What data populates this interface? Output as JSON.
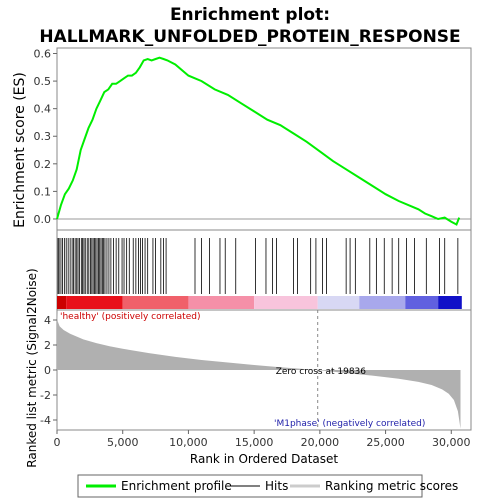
{
  "chart_data": {
    "type": "line",
    "title_line1": "Enrichment plot:",
    "title_line2": "HALLMARK_UNFOLDED_PROTEIN_RESPONSE",
    "es_panel": {
      "ylabel": "Enrichment score (ES)",
      "ylim": [
        -0.04,
        0.62
      ],
      "yticks": [
        "0.0",
        "0.1",
        "0.2",
        "0.3",
        "0.4",
        "0.5",
        "0.6"
      ],
      "ytick_values": [
        0.0,
        0.1,
        0.2,
        0.3,
        0.4,
        0.5,
        0.6
      ],
      "line_color": "#00ee00",
      "series": [
        {
          "x": [
            0,
            300,
            600,
            900,
            1200,
            1500,
            1800,
            2100,
            2400,
            2700,
            3000,
            3300,
            3600,
            3900,
            4200,
            4500,
            4800,
            5100,
            5400,
            5700,
            6000,
            6300,
            6600,
            6900,
            7200,
            7500,
            7800,
            8100,
            8400,
            9000,
            10000,
            11000,
            12000,
            13000,
            14000,
            15000,
            16000,
            17000,
            18000,
            19000,
            20000,
            21000,
            22000,
            23000,
            24000,
            25000,
            26000,
            27000,
            27500,
            28000,
            28500,
            29000,
            29500,
            30000,
            30400,
            30600
          ],
          "y": [
            0.0,
            0.05,
            0.09,
            0.11,
            0.14,
            0.18,
            0.25,
            0.29,
            0.33,
            0.36,
            0.4,
            0.43,
            0.46,
            0.47,
            0.49,
            0.49,
            0.5,
            0.51,
            0.52,
            0.52,
            0.53,
            0.55,
            0.575,
            0.58,
            0.575,
            0.58,
            0.585,
            0.58,
            0.575,
            0.56,
            0.52,
            0.5,
            0.47,
            0.45,
            0.42,
            0.39,
            0.36,
            0.34,
            0.31,
            0.28,
            0.245,
            0.21,
            0.18,
            0.15,
            0.12,
            0.09,
            0.065,
            0.045,
            0.035,
            0.02,
            0.01,
            0.0,
            0.005,
            -0.01,
            -0.02,
            0.005
          ]
        }
      ]
    },
    "hits": [
      80,
      160,
      300,
      420,
      560,
      700,
      850,
      1000,
      1150,
      1250,
      1380,
      1500,
      1600,
      1720,
      1850,
      1950,
      2050,
      2150,
      2300,
      2420,
      2550,
      2650,
      2750,
      2850,
      2950,
      3050,
      3150,
      3250,
      3350,
      3450,
      3550,
      3650,
      3800,
      3950,
      4100,
      4300,
      4500,
      4700,
      4950,
      5100,
      5300,
      5500,
      5800,
      6000,
      6200,
      6350,
      6500,
      6700,
      6900,
      7300,
      7500,
      7900,
      8100,
      8300,
      10500,
      11000,
      11600,
      12400,
      12800,
      13600,
      15100,
      15900,
      16400,
      16700,
      18000,
      18300,
      19300,
      19700,
      20200,
      20500,
      22000,
      22300,
      22700,
      23800,
      24300,
      24900,
      25500,
      26000,
      26600,
      27200,
      28100,
      29100,
      29500,
      30500
    ],
    "rank_bar": {
      "segments": [
        {
          "from": 0,
          "to": 700,
          "color": "#cc0000"
        },
        {
          "from": 700,
          "to": 5000,
          "color": "#e8101a"
        },
        {
          "from": 5000,
          "to": 10000,
          "color": "#f0606a"
        },
        {
          "from": 10000,
          "to": 15000,
          "color": "#f590a8"
        },
        {
          "from": 15000,
          "to": 19836,
          "color": "#f8c4dc"
        },
        {
          "from": 19836,
          "to": 23000,
          "color": "#d8d8f4"
        },
        {
          "from": 23000,
          "to": 26500,
          "color": "#a8a8ec"
        },
        {
          "from": 26500,
          "to": 29000,
          "color": "#6060e0"
        },
        {
          "from": 29000,
          "to": 30800,
          "color": "#1010c8"
        }
      ]
    },
    "metric_panel": {
      "ylabel": "Ranked list metric (Signal2Noise)",
      "ylim": [
        -4.8,
        4.8
      ],
      "yticks": [
        "4",
        "2",
        "0",
        "-2",
        "-4"
      ],
      "ytick_values": [
        4,
        2,
        0,
        -2,
        -4
      ],
      "fill_color": "#b0b0b0",
      "x": [
        0,
        50,
        200,
        500,
        1000,
        2000,
        3000,
        4000,
        5000,
        7000,
        9000,
        11000,
        13000,
        15000,
        17000,
        19836,
        22000,
        24000,
        26000,
        27500,
        28500,
        29300,
        29800,
        30200,
        30500,
        30700
      ],
      "y": [
        4.6,
        3.9,
        3.5,
        3.2,
        2.9,
        2.45,
        2.15,
        1.9,
        1.7,
        1.35,
        1.05,
        0.8,
        0.6,
        0.4,
        0.22,
        0.0,
        -0.25,
        -0.45,
        -0.7,
        -0.95,
        -1.2,
        -1.55,
        -1.9,
        -2.4,
        -3.3,
        -4.7
      ],
      "zero_cross_label": "Zero cross at 19836",
      "zero_cross": 19836,
      "pos_label": "'healthy' (positively correlated)",
      "neg_label": "'M1phase' (negatively correlated)"
    },
    "xaxis": {
      "xlabel": "Rank in Ordered Dataset",
      "xlim": [
        0,
        31500
      ],
      "xticks": [
        "0",
        "5,000",
        "10,000",
        "15,000",
        "20,000",
        "25,000",
        "30,000"
      ],
      "xtick_values": [
        0,
        5000,
        10000,
        15000,
        20000,
        25000,
        30000
      ]
    },
    "legend": {
      "placement": "bottom",
      "items": [
        {
          "label": "Enrichment profile",
          "color": "#00ee00",
          "kind": "line"
        },
        {
          "label": "Hits",
          "color": "#000000",
          "kind": "thin-line"
        },
        {
          "label": "Ranking metric scores",
          "color": "#cccccc",
          "kind": "line"
        }
      ]
    }
  }
}
